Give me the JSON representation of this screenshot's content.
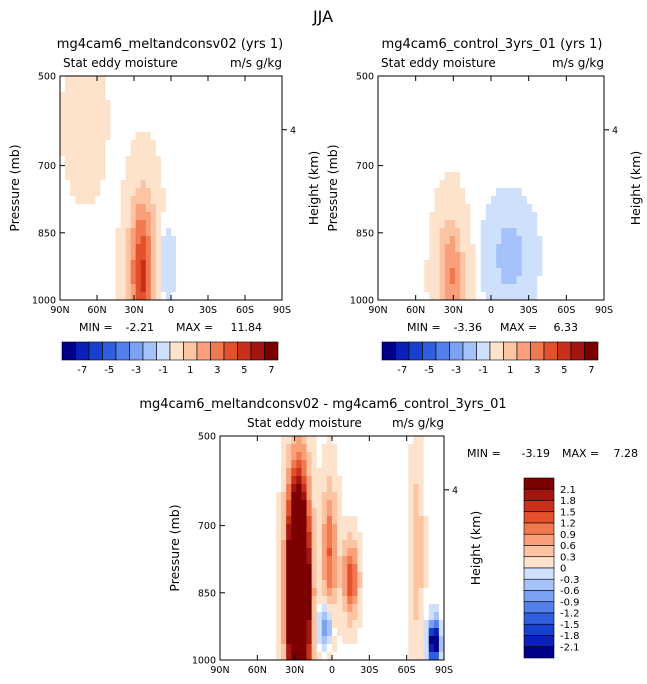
{
  "figure_title": "JJA",
  "chart_data": [
    {
      "type": "heatmap",
      "title": "mg4cam6_meltandconsv02 (yrs 1)",
      "subtitle_left": "Stat eddy moisture",
      "subtitle_right": "m/s g/kg",
      "xlabel": "",
      "ylabel": "Pressure (mb)",
      "y2label": "Height (km)",
      "x_ticks": [
        "90N",
        "60N",
        "30N",
        "0",
        "30S",
        "60S",
        "90S"
      ],
      "x_tick_values": [
        90,
        60,
        30,
        0,
        -30,
        -60,
        -90
      ],
      "y_ticks": [
        "500",
        "700",
        "850",
        "1000"
      ],
      "y_tick_values": [
        500,
        700,
        850,
        1000
      ],
      "y2_ticks": [
        "4"
      ],
      "xlim": [
        90,
        -90
      ],
      "ylim": [
        1000,
        500
      ],
      "min_label": "MIN =",
      "min_value": "-2.21",
      "max_label": "MAX =",
      "max_value": "11.84",
      "colorbar_levels": [
        "-7",
        "-5",
        "-3",
        "-1",
        "1",
        "3",
        "5",
        "7"
      ],
      "features": [
        {
          "lat": 23,
          "p": 935,
          "peak": 11.84,
          "lat_spread": 10,
          "p_spread": 150
        },
        {
          "lat": 15,
          "p": 920,
          "peak": -2.21,
          "lat_spread": 12,
          "p_spread": 80
        },
        {
          "lat": 70,
          "p": 600,
          "peak": 1.0,
          "lat_spread": 14,
          "p_spread": 140
        }
      ]
    },
    {
      "type": "heatmap",
      "title": "mg4cam6_control_3yrs_01 (yrs 1)",
      "subtitle_left": "Stat eddy moisture",
      "subtitle_right": "m/s g/kg",
      "xlabel": "",
      "ylabel": "Pressure (mb)",
      "y2label": "Height (km)",
      "x_ticks": [
        "90N",
        "60N",
        "30N",
        "0",
        "30S",
        "60S",
        "90S"
      ],
      "x_tick_values": [
        90,
        60,
        30,
        0,
        -30,
        -60,
        -90
      ],
      "y_ticks": [
        "500",
        "700",
        "850",
        "1000"
      ],
      "y_tick_values": [
        500,
        700,
        850,
        1000
      ],
      "y2_ticks": [
        "4"
      ],
      "xlim": [
        90,
        -90
      ],
      "ylim": [
        1000,
        500
      ],
      "min_label": "MIN =",
      "min_value": "-3.36",
      "max_label": "MAX =",
      "max_value": "6.33",
      "colorbar_levels": [
        "-7",
        "-5",
        "-3",
        "-1",
        "1",
        "3",
        "5",
        "7"
      ],
      "features": [
        {
          "lat": 32,
          "p": 945,
          "peak": 6.33,
          "lat_spread": 10,
          "p_spread": 120
        },
        {
          "lat": -15,
          "p": 900,
          "peak": -3.36,
          "lat_spread": 14,
          "p_spread": 90
        }
      ]
    },
    {
      "type": "heatmap",
      "title": "mg4cam6_meltandconsv02 - mg4cam6_control_3yrs_01",
      "subtitle_left": "Stat eddy moisture",
      "subtitle_right": "m/s g/kg",
      "xlabel": "",
      "ylabel": "Pressure (mb)",
      "y2label": "Height (km)",
      "x_ticks": [
        "90N",
        "60N",
        "30N",
        "0",
        "30S",
        "60S",
        "90S"
      ],
      "x_tick_values": [
        90,
        60,
        30,
        0,
        -30,
        -60,
        -90
      ],
      "y_ticks": [
        "500",
        "700",
        "850",
        "1000"
      ],
      "y_tick_values": [
        500,
        700,
        850,
        1000
      ],
      "y2_ticks": [
        "4"
      ],
      "xlim": [
        90,
        -90
      ],
      "ylim": [
        1000,
        500
      ],
      "min_label": "MIN =",
      "min_value": "-3.19",
      "max_label": "MAX =",
      "max_value": "7.28",
      "colorbar_levels": [
        "2.1",
        "1.8",
        "1.5",
        "1.2",
        "0.9",
        "0.6",
        "0.3",
        "0",
        "-0.3",
        "-0.6",
        "-0.9",
        "-1.2",
        "-1.5",
        "-1.8",
        "-2.1"
      ],
      "features": [
        {
          "lat": 27,
          "p": 850,
          "peak": 7.28,
          "lat_spread": 8,
          "p_spread": 220
        },
        {
          "lat": 2,
          "p": 760,
          "peak": 1.2,
          "lat_spread": 6,
          "p_spread": 140
        },
        {
          "lat": -15,
          "p": 820,
          "peak": 1.5,
          "lat_spread": 6,
          "p_spread": 80
        },
        {
          "lat": -82,
          "p": 960,
          "peak": -3.19,
          "lat_spread": 4,
          "p_spread": 40
        },
        {
          "lat": -68,
          "p": 760,
          "peak": 0.6,
          "lat_spread": 5,
          "p_spread": 180
        },
        {
          "lat": 5,
          "p": 920,
          "peak": -1.0,
          "lat_spread": 5,
          "p_spread": 40
        }
      ]
    }
  ],
  "colors": {
    "neg": [
      "#00008b",
      "#0a20b8",
      "#1540d0",
      "#2f5fe0",
      "#5480ec",
      "#7ba1f4",
      "#a6c2fa",
      "#cfe0fd"
    ],
    "pos": [
      "#fde2cc",
      "#fcc4a3",
      "#f9a07a",
      "#f27850",
      "#e3502c",
      "#c9301a",
      "#a41510",
      "#7c0000"
    ],
    "background": "#ffffff"
  }
}
